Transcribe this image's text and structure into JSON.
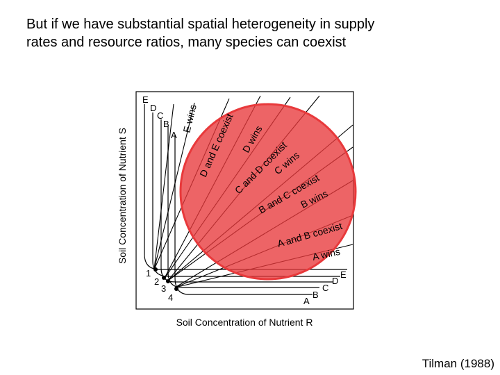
{
  "slide": {
    "title_line1": "But if we have substantial spatial heterogeneity in supply",
    "title_line2": "rates and resource ratios, many species can coexist",
    "citation": "Tilman (1988)"
  },
  "figure": {
    "x_axis_label": "Soil Concentration of Nutrient R",
    "y_axis_label": "Soil Concentration of Nutrient S",
    "isocline_labels_top": [
      "E",
      "D",
      "C",
      "B",
      "A"
    ],
    "isocline_labels_right": [
      "E",
      "D",
      "C",
      "B",
      "A"
    ],
    "equilibrium_points": [
      "1",
      "2",
      "3",
      "4"
    ],
    "region_labels": [
      "E wins",
      "D and E coexist",
      "D wins",
      "C and D coexist",
      "C wins",
      "B and C coexist",
      "B wins",
      "A and B coexist",
      "A wins"
    ],
    "highlight_color": "#e8393b"
  }
}
